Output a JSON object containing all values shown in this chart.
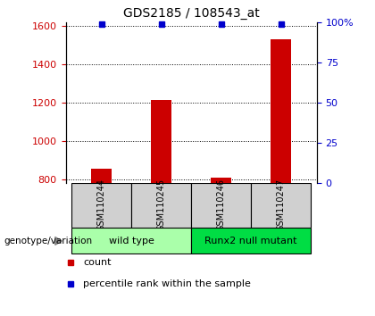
{
  "title": "GDS2185 / 108543_at",
  "samples": [
    "GSM110244",
    "GSM110245",
    "GSM110246",
    "GSM110247"
  ],
  "counts": [
    855,
    1215,
    810,
    1530
  ],
  "percentile_ranks": [
    99,
    99,
    99,
    99
  ],
  "ylim_left": [
    780,
    1620
  ],
  "ylim_right": [
    0,
    100
  ],
  "yticks_left": [
    800,
    1000,
    1200,
    1400,
    1600
  ],
  "yticks_right": [
    0,
    25,
    50,
    75,
    100
  ],
  "bar_color": "#cc0000",
  "percentile_color": "#0000cc",
  "groups": [
    {
      "label": "wild type",
      "samples": [
        0,
        1
      ],
      "color": "#aaffaa"
    },
    {
      "label": "Runx2 null mutant",
      "samples": [
        2,
        3
      ],
      "color": "#00dd44"
    }
  ],
  "genotype_label": "genotype/variation",
  "legend_count_label": "count",
  "legend_percentile_label": "percentile rank within the sample",
  "bar_width": 0.35,
  "percentile_marker_size": 5,
  "sample_box_color": "#d0d0d0",
  "background_color": "#ffffff",
  "title_fontsize": 10,
  "tick_fontsize": 8,
  "legend_fontsize": 8
}
